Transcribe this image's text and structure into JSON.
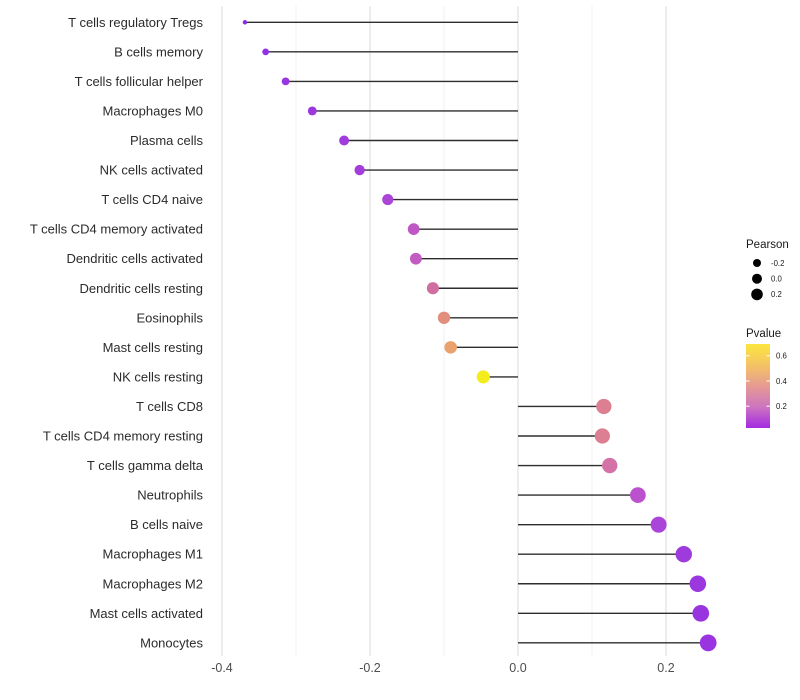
{
  "chart_data": {
    "type": "lollipop",
    "orientation": "horizontal",
    "title": "",
    "xlabel": "",
    "ylabel": "",
    "baseline_x": 0.0,
    "x_axis": {
      "range": [
        -0.42,
        0.287
      ],
      "ticks": [
        -0.4,
        -0.2,
        0.0,
        0.2
      ],
      "tick_labels": [
        "-0.4",
        "-0.2",
        "0.0",
        "0.2"
      ],
      "gridline_values": [
        -0.4,
        -0.3,
        -0.2,
        -0.1,
        0.0,
        0.1,
        0.2
      ],
      "grid_on": true
    },
    "size_encoding": {
      "variable": "Pearson",
      "domain": [
        -0.37,
        0.26
      ]
    },
    "color_encoding": {
      "variable": "Pvalue",
      "scale": "plasma-like",
      "low_color": "#a32ae2",
      "high_color": "#fce63e"
    },
    "points": [
      {
        "label": "T cells regulatory  Tregs",
        "pearson": -0.369,
        "dot_color": "#8a2ce2"
      },
      {
        "label": "B cells memory",
        "pearson": -0.341,
        "dot_color": "#942fe2"
      },
      {
        "label": "T cells follicular helper",
        "pearson": -0.314,
        "dot_color": "#9834e0"
      },
      {
        "label": "Macrophages M0",
        "pearson": -0.278,
        "dot_color": "#9c37de"
      },
      {
        "label": "Plasma cells",
        "pearson": -0.235,
        "dot_color": "#a03bdc"
      },
      {
        "label": "NK cells activated",
        "pearson": -0.214,
        "dot_color": "#a33eda"
      },
      {
        "label": "T cells CD4 naive",
        "pearson": -0.176,
        "dot_color": "#aa45d5"
      },
      {
        "label": "T cells CD4 memory activated",
        "pearson": -0.141,
        "dot_color": "#bf58c5"
      },
      {
        "label": "Dendritic cells activated",
        "pearson": -0.138,
        "dot_color": "#c25cc2"
      },
      {
        "label": "Dendritic cells resting",
        "pearson": -0.115,
        "dot_color": "#d06f9f"
      },
      {
        "label": "Eosinophils",
        "pearson": -0.1,
        "dot_color": "#e28e7d"
      },
      {
        "label": "Mast cells resting",
        "pearson": -0.091,
        "dot_color": "#eaa26c"
      },
      {
        "label": "NK cells resting",
        "pearson": -0.047,
        "dot_color": "#f5ec1e"
      },
      {
        "label": "T cells CD8",
        "pearson": 0.116,
        "dot_color": "#dc8091"
      },
      {
        "label": "T cells CD4 memory resting",
        "pearson": 0.114,
        "dot_color": "#dc7f92"
      },
      {
        "label": "T cells gamma delta",
        "pearson": 0.124,
        "dot_color": "#d472a8"
      },
      {
        "label": "Neutrophils",
        "pearson": 0.162,
        "dot_color": "#bc51cd"
      },
      {
        "label": "B cells naive",
        "pearson": 0.19,
        "dot_color": "#a945d8"
      },
      {
        "label": "Macrophages M1",
        "pearson": 0.224,
        "dot_color": "#9d3bdc"
      },
      {
        "label": "Macrophages M2",
        "pearson": 0.243,
        "dot_color": "#9a37de"
      },
      {
        "label": "Mast cells activated",
        "pearson": 0.247,
        "dot_color": "#9935df"
      },
      {
        "label": "Monocytes",
        "pearson": 0.257,
        "dot_color": "#9a33e0"
      }
    ],
    "legend": {
      "size": {
        "title": "Pearson",
        "dot_color": "#000000",
        "entries": [
          {
            "label": "-0.2",
            "radius": 4.0
          },
          {
            "label": "0.0",
            "radius": 5.0
          },
          {
            "label": "0.2",
            "radius": 5.8
          }
        ]
      },
      "color": {
        "title": "Pvalue",
        "tick_labels": [
          "0.6",
          "0.4",
          "0.2"
        ],
        "tick_pos_pct": [
          14,
          44,
          74
        ],
        "gradient_stops": [
          "#fce63e",
          "#f4c364",
          "#e69b93",
          "#cd74c0",
          "#a32ae2"
        ]
      }
    },
    "style": {
      "stem_color": "#2e2e2e",
      "grid_major_color": "#dcdcdc",
      "grid_minor_color": "#efefef",
      "axis_text_color": "#4d4d4d",
      "category_text_color": "#2b2b2b",
      "legend_text_color": "#1a1a1a",
      "background": "#ffffff"
    }
  }
}
